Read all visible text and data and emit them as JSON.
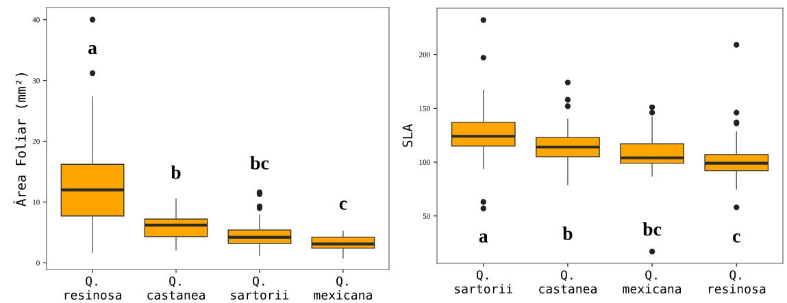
{
  "chart_data": [
    {
      "type": "box",
      "ylabel": "Área Foliar (mm²)",
      "categories": [
        "Q.\nresinosa",
        "Q.\ncastanea",
        "Q.\nsartorii",
        "Q.\nmexicana"
      ],
      "color": "#ffa500",
      "ylim": [
        -1.1,
        42
      ],
      "yticks": [
        0,
        10,
        20,
        30,
        40
      ],
      "grid": false,
      "boxes": [
        {
          "low": 1.7,
          "q1": 7.7,
          "median": 12.0,
          "q3": 16.2,
          "high": 27.3,
          "outliers": [
            31.2,
            40.0
          ]
        },
        {
          "low": 2.1,
          "q1": 4.3,
          "median": 6.2,
          "q3": 7.2,
          "high": 10.5
        },
        {
          "low": 1.2,
          "q1": 3.2,
          "median": 4.2,
          "q3": 5.4,
          "high": 7.9,
          "outliers": [
            9.0,
            9.3,
            11.3,
            11.6
          ]
        },
        {
          "low": 0.8,
          "q1": 2.4,
          "median": 3.1,
          "q3": 4.2,
          "high": 5.2
        }
      ],
      "annotations": [
        "a",
        "b",
        "bc",
        "c"
      ]
    },
    {
      "type": "box",
      "ylabel": "SLA",
      "categories": [
        "Q.\nsartorii",
        "Q.\ncastanea",
        "Q.\nmexicana",
        "Q.\nresinosa"
      ],
      "color": "#ffa500",
      "ylim": [
        6,
        243
      ],
      "yticks": [
        50,
        100,
        150,
        200
      ],
      "grid": false,
      "boxes": [
        {
          "low": 94,
          "q1": 115,
          "median": 124,
          "q3": 137,
          "high": 167,
          "outliers": [
            57,
            63,
            197,
            232
          ]
        },
        {
          "low": 79,
          "q1": 105,
          "median": 114,
          "q3": 123,
          "high": 140,
          "outliers": [
            152,
            158,
            174
          ]
        },
        {
          "low": 87,
          "q1": 99,
          "median": 104,
          "q3": 117,
          "high": 142,
          "outliers": [
            17,
            146,
            151
          ]
        },
        {
          "low": 75,
          "q1": 92,
          "median": 99,
          "q3": 107,
          "high": 128,
          "outliers": [
            58,
            136,
            137,
            146,
            209
          ]
        }
      ],
      "annotations": [
        "a",
        "b",
        "bc",
        "c"
      ]
    }
  ]
}
